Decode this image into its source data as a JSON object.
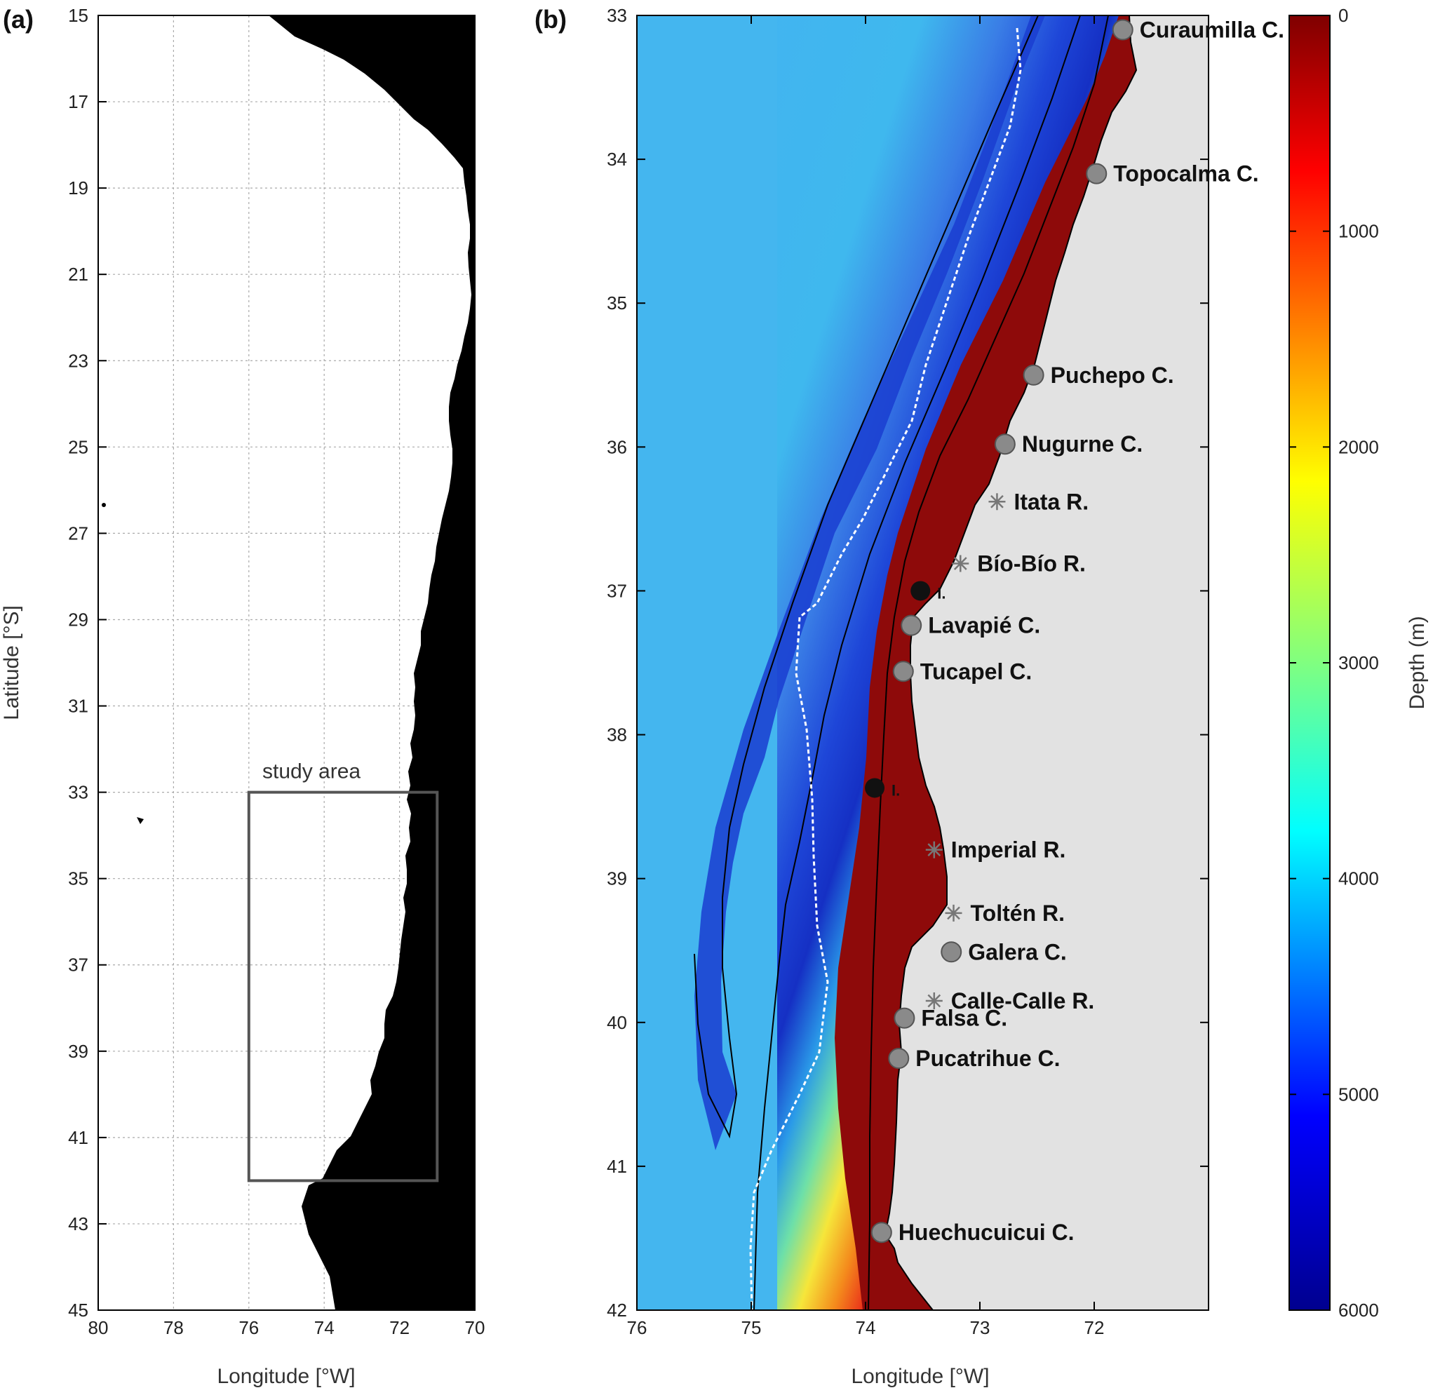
{
  "panel_a": {
    "label": "(a)",
    "xlabel": "Longitude [°W]",
    "ylabel": "Latitude [°S]",
    "xlim": [
      80,
      70
    ],
    "ylim": [
      15,
      45
    ],
    "xticks": [
      "80",
      "78",
      "76",
      "74",
      "72",
      "70"
    ],
    "yticks": [
      "15",
      "17",
      "19",
      "21",
      "23",
      "25",
      "27",
      "29",
      "31",
      "33",
      "35",
      "37",
      "39",
      "41",
      "43",
      "45"
    ],
    "study_area_label": "study area",
    "study_area": {
      "lon_west": 76,
      "lon_east": 71,
      "lat_north": 33,
      "lat_south": 42
    },
    "land_color": "#000000",
    "ocean_color": "#ffffff",
    "grid": true
  },
  "panel_b": {
    "label": "(b)",
    "xlabel": "Longitude [°W]",
    "xlim": [
      76,
      71
    ],
    "ylim": [
      33,
      42
    ],
    "xticks": [
      "76",
      "75",
      "74",
      "73",
      "72"
    ],
    "yticks": [
      "33",
      "34",
      "35",
      "36",
      "37",
      "38",
      "39",
      "40",
      "41",
      "42"
    ],
    "land_color": "#e2e2e2",
    "colorbar": {
      "label": "Depth (m)",
      "ticks": [
        "0",
        "1000",
        "2000",
        "3000",
        "4000",
        "5000",
        "6000"
      ],
      "range": [
        0,
        6000
      ],
      "colormap": "jet reversed (0 dark red, 6000 dark blue)"
    },
    "places": [
      {
        "name": "Curaumilla C.",
        "lon": 71.75,
        "lat": 33.1,
        "marker": "circle"
      },
      {
        "name": "Topocalma C.",
        "lon": 71.98,
        "lat": 34.1,
        "marker": "circle"
      },
      {
        "name": "Puchepo C.",
        "lon": 72.53,
        "lat": 35.5,
        "marker": "circle"
      },
      {
        "name": "Nugurne C.",
        "lon": 72.78,
        "lat": 35.98,
        "marker": "circle"
      },
      {
        "name": "Itata R.",
        "lon": 72.85,
        "lat": 36.38,
        "marker": "star"
      },
      {
        "name": "Bío-Bío R.",
        "lon": 73.17,
        "lat": 36.81,
        "marker": "star"
      },
      {
        "name": "I.",
        "lon": 73.52,
        "lat": 37.0,
        "marker": "island"
      },
      {
        "name": "Lavapié C.",
        "lon": 73.6,
        "lat": 37.24,
        "marker": "circle"
      },
      {
        "name": "Tucapel C.",
        "lon": 73.67,
        "lat": 37.56,
        "marker": "circle"
      },
      {
        "name": "I.",
        "lon": 73.92,
        "lat": 38.37,
        "marker": "island"
      },
      {
        "name": "Imperial R.",
        "lon": 73.4,
        "lat": 38.8,
        "marker": "star"
      },
      {
        "name": "Toltén R.",
        "lon": 73.23,
        "lat": 39.24,
        "marker": "star"
      },
      {
        "name": "Galera C.",
        "lon": 73.25,
        "lat": 39.51,
        "marker": "circle"
      },
      {
        "name": "Calle-Calle R.",
        "lon": 73.4,
        "lat": 39.85,
        "marker": "star"
      },
      {
        "name": "Falsa C.",
        "lon": 73.66,
        "lat": 39.97,
        "marker": "circle"
      },
      {
        "name": "Pucatrihue C.",
        "lon": 73.71,
        "lat": 40.25,
        "marker": "circle"
      },
      {
        "name": "Huechucuicui C.",
        "lon": 73.86,
        "lat": 41.46,
        "marker": "circle"
      }
    ]
  }
}
